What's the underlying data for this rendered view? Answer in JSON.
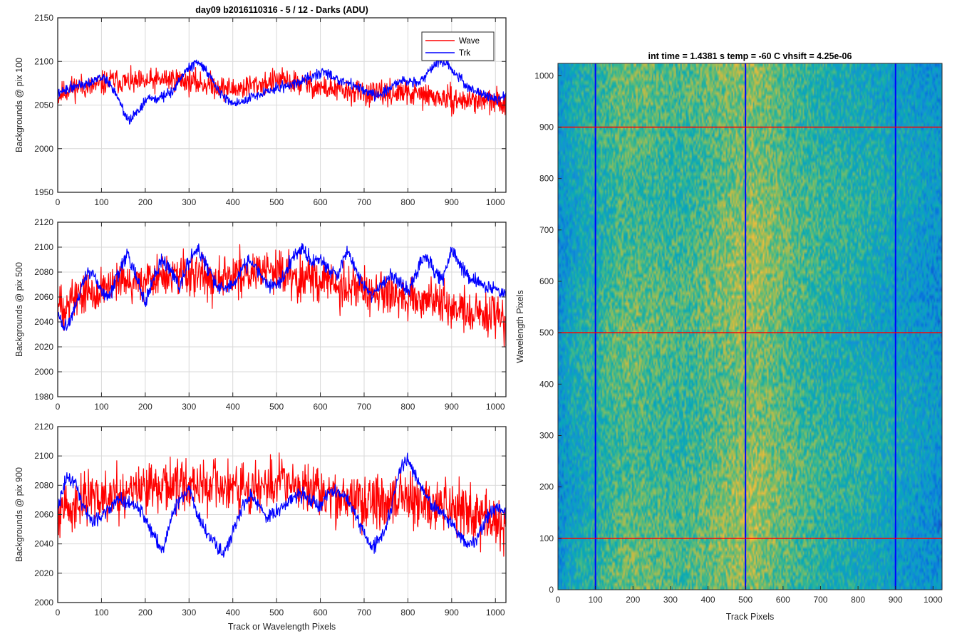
{
  "figure_title": "day09 b2016110316 - 5 / 12 - Darks (ADU)",
  "colors": {
    "wave": "#ff0000",
    "trk": "#0000ff",
    "grid": "#d9d9d9",
    "axis": "#262626"
  },
  "chart_data": [
    {
      "type": "line",
      "title": "day09 b2016110316 - 5 / 12 - Darks (ADU)",
      "xlabel": "",
      "ylabel": "Backgrounds @ pix 100",
      "xlim": [
        0,
        1024
      ],
      "ylim": [
        1950,
        2150
      ],
      "xticks": [
        0,
        100,
        200,
        300,
        400,
        500,
        600,
        700,
        800,
        900,
        1000
      ],
      "yticks": [
        1950,
        2000,
        2050,
        2100,
        2150
      ],
      "grid": true,
      "legend": {
        "position": "top-right",
        "entries": [
          "Wave",
          "Trk"
        ]
      },
      "series": [
        {
          "name": "Wave",
          "color": "#ff0000",
          "x": [
            0,
            25,
            50,
            75,
            100,
            125,
            150,
            175,
            200,
            225,
            250,
            275,
            300,
            325,
            350,
            375,
            400,
            425,
            450,
            475,
            500,
            525,
            550,
            575,
            600,
            625,
            650,
            675,
            700,
            725,
            750,
            775,
            800,
            825,
            850,
            875,
            900,
            925,
            950,
            975,
            1000,
            1024
          ],
          "y": [
            2060,
            2068,
            2072,
            2070,
            2074,
            2078,
            2077,
            2075,
            2076,
            2078,
            2080,
            2079,
            2077,
            2075,
            2073,
            2070,
            2068,
            2070,
            2073,
            2075,
            2078,
            2077,
            2075,
            2073,
            2070,
            2068,
            2066,
            2065,
            2064,
            2062,
            2063,
            2064,
            2063,
            2062,
            2060,
            2058,
            2056,
            2055,
            2056,
            2055,
            2054,
            2052
          ],
          "noise": 12,
          "seed": 11
        },
        {
          "name": "Trk",
          "color": "#0000ff",
          "x": [
            0,
            20,
            40,
            60,
            80,
            100,
            120,
            140,
            160,
            180,
            200,
            230,
            260,
            290,
            320,
            340,
            360,
            380,
            400,
            430,
            460,
            490,
            520,
            550,
            580,
            610,
            640,
            670,
            700,
            730,
            760,
            790,
            820,
            850,
            870,
            890,
            910,
            940,
            970,
            1000,
            1024
          ],
          "y": [
            2062,
            2068,
            2072,
            2075,
            2078,
            2082,
            2075,
            2055,
            2032,
            2040,
            2055,
            2058,
            2065,
            2088,
            2100,
            2090,
            2072,
            2060,
            2052,
            2055,
            2062,
            2068,
            2072,
            2076,
            2083,
            2088,
            2080,
            2073,
            2068,
            2060,
            2070,
            2080,
            2075,
            2088,
            2100,
            2098,
            2085,
            2070,
            2063,
            2056,
            2060
          ],
          "noise": 5,
          "seed": 22
        }
      ]
    },
    {
      "type": "line",
      "title": "",
      "xlabel": "",
      "ylabel": "Backgrounds @ pix 500",
      "xlim": [
        0,
        1024
      ],
      "ylim": [
        1980,
        2120
      ],
      "xticks": [
        0,
        100,
        200,
        300,
        400,
        500,
        600,
        700,
        800,
        900,
        1000
      ],
      "yticks": [
        1980,
        2000,
        2020,
        2040,
        2060,
        2080,
        2100,
        2120
      ],
      "grid": true,
      "series": [
        {
          "name": "Wave",
          "color": "#ff0000",
          "x": [
            0,
            25,
            50,
            75,
            100,
            125,
            150,
            175,
            200,
            225,
            250,
            275,
            300,
            325,
            350,
            375,
            400,
            425,
            450,
            475,
            500,
            525,
            550,
            575,
            600,
            625,
            650,
            675,
            700,
            725,
            750,
            775,
            800,
            825,
            850,
            875,
            900,
            925,
            950,
            975,
            1000,
            1024
          ],
          "y": [
            2050,
            2058,
            2062,
            2064,
            2066,
            2068,
            2070,
            2072,
            2074,
            2075,
            2076,
            2077,
            2077,
            2076,
            2076,
            2077,
            2078,
            2079,
            2080,
            2080,
            2080,
            2079,
            2077,
            2075,
            2073,
            2070,
            2068,
            2066,
            2063,
            2062,
            2062,
            2060,
            2059,
            2058,
            2057,
            2055,
            2053,
            2050,
            2048,
            2046,
            2044,
            2040
          ],
          "noise": 15,
          "seed": 33
        },
        {
          "name": "Trk",
          "color": "#0000ff",
          "x": [
            0,
            20,
            40,
            60,
            80,
            100,
            120,
            140,
            160,
            180,
            200,
            220,
            240,
            260,
            280,
            300,
            320,
            340,
            360,
            380,
            400,
            420,
            440,
            460,
            480,
            500,
            520,
            540,
            560,
            580,
            600,
            620,
            640,
            660,
            680,
            700,
            720,
            740,
            760,
            780,
            800,
            820,
            840,
            860,
            880,
            900,
            920,
            940,
            960,
            980,
            1000,
            1024
          ],
          "y": [
            2045,
            2035,
            2050,
            2075,
            2080,
            2065,
            2060,
            2080,
            2095,
            2075,
            2055,
            2075,
            2090,
            2080,
            2068,
            2090,
            2098,
            2085,
            2072,
            2065,
            2070,
            2082,
            2090,
            2080,
            2070,
            2070,
            2078,
            2095,
            2100,
            2088,
            2090,
            2083,
            2078,
            2098,
            2082,
            2068,
            2062,
            2070,
            2078,
            2072,
            2065,
            2080,
            2095,
            2080,
            2075,
            2098,
            2085,
            2076,
            2072,
            2068,
            2066,
            2062
          ],
          "noise": 5,
          "seed": 44
        }
      ]
    },
    {
      "type": "line",
      "title": "",
      "xlabel": "Track or Wavelength Pixels",
      "ylabel": "Backgrounds @ pix 900",
      "xlim": [
        0,
        1024
      ],
      "ylim": [
        2000,
        2120
      ],
      "xticks": [
        0,
        100,
        200,
        300,
        400,
        500,
        600,
        700,
        800,
        900,
        1000
      ],
      "yticks": [
        2000,
        2020,
        2040,
        2060,
        2080,
        2100,
        2120
      ],
      "grid": true,
      "series": [
        {
          "name": "Wave",
          "color": "#ff0000",
          "x": [
            0,
            25,
            50,
            75,
            100,
            125,
            150,
            175,
            200,
            225,
            250,
            275,
            300,
            325,
            350,
            375,
            400,
            425,
            450,
            475,
            500,
            525,
            550,
            575,
            600,
            625,
            650,
            675,
            700,
            725,
            750,
            775,
            800,
            825,
            850,
            875,
            900,
            925,
            950,
            975,
            1000,
            1024
          ],
          "y": [
            2062,
            2066,
            2068,
            2070,
            2072,
            2074,
            2076,
            2078,
            2078,
            2079,
            2080,
            2080,
            2080,
            2079,
            2078,
            2077,
            2076,
            2077,
            2079,
            2080,
            2081,
            2080,
            2078,
            2076,
            2074,
            2072,
            2070,
            2069,
            2068,
            2068,
            2070,
            2072,
            2071,
            2069,
            2067,
            2066,
            2065,
            2063,
            2060,
            2058,
            2056,
            2054
          ],
          "noise": 15,
          "seed": 55
        },
        {
          "name": "Trk",
          "color": "#0000ff",
          "x": [
            0,
            20,
            40,
            60,
            80,
            100,
            120,
            140,
            160,
            180,
            200,
            220,
            240,
            260,
            280,
            300,
            320,
            340,
            360,
            380,
            400,
            420,
            440,
            460,
            480,
            500,
            520,
            540,
            560,
            580,
            600,
            620,
            640,
            660,
            680,
            700,
            720,
            740,
            760,
            780,
            800,
            820,
            840,
            860,
            880,
            900,
            920,
            940,
            960,
            980,
            1000,
            1024
          ],
          "y": [
            2065,
            2085,
            2082,
            2065,
            2055,
            2060,
            2065,
            2070,
            2068,
            2066,
            2058,
            2045,
            2035,
            2058,
            2072,
            2078,
            2060,
            2048,
            2040,
            2032,
            2048,
            2065,
            2072,
            2066,
            2058,
            2062,
            2068,
            2072,
            2074,
            2070,
            2066,
            2075,
            2076,
            2072,
            2062,
            2046,
            2038,
            2045,
            2062,
            2090,
            2098,
            2085,
            2072,
            2066,
            2060,
            2055,
            2046,
            2038,
            2045,
            2058,
            2065,
            2062
          ],
          "noise": 4,
          "seed": 66
        }
      ]
    },
    {
      "type": "heatmap",
      "title": "int time = 1.4381 s    temp = -60 C    vhsift = 4.25e-06",
      "xlabel": "Track Pixels",
      "ylabel": "Wavelength Pixels",
      "xlim": [
        0,
        1024
      ],
      "ylim": [
        0,
        1024
      ],
      "xticks": [
        0,
        100,
        200,
        300,
        400,
        500,
        600,
        700,
        800,
        900,
        1000
      ],
      "yticks": [
        0,
        100,
        200,
        300,
        400,
        500,
        600,
        700,
        800,
        900,
        1000
      ],
      "grid": false,
      "colormap": "parula",
      "column_profile": {
        "x": [
          0,
          30,
          60,
          100,
          130,
          160,
          200,
          240,
          280,
          320,
          360,
          400,
          440,
          480,
          520,
          560,
          600,
          640,
          680,
          720,
          760,
          800,
          840,
          880,
          920,
          960,
          1000,
          1024
        ],
        "level": [
          0.3,
          0.4,
          0.45,
          0.5,
          0.55,
          0.6,
          0.62,
          0.6,
          0.58,
          0.56,
          0.58,
          0.62,
          0.66,
          0.7,
          0.72,
          0.68,
          0.63,
          0.58,
          0.55,
          0.52,
          0.5,
          0.48,
          0.45,
          0.42,
          0.4,
          0.36,
          0.33,
          0.3
        ]
      },
      "marker_lines": {
        "vertical": {
          "x": [
            100,
            500,
            900
          ],
          "color": "#0000ff"
        },
        "horizontal": {
          "y": [
            100,
            500,
            900
          ],
          "color": "#ff0000"
        }
      }
    }
  ]
}
